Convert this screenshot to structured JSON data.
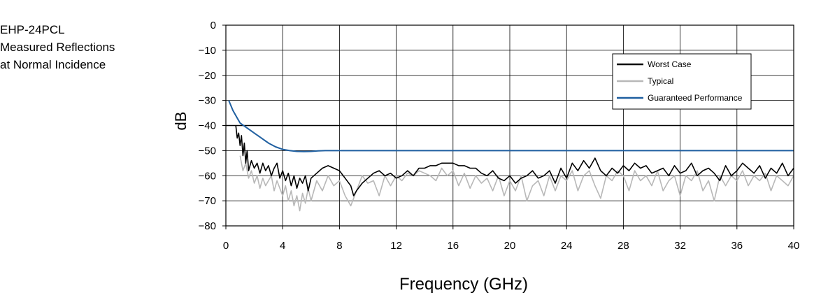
{
  "page_title_lines": [
    "EHP-24PCL",
    "Measured Reflections",
    "at Normal Incidence"
  ],
  "chart_data": {
    "type": "line",
    "title": "EHP-24PCL Measured Reflections at Normal Incidence",
    "xlabel": "Frequency (GHz)",
    "ylabel": "dB",
    "xlim": [
      0,
      40
    ],
    "ylim": [
      -80,
      0
    ],
    "x_ticks": [
      0,
      4,
      8,
      12,
      16,
      20,
      24,
      28,
      32,
      36,
      40
    ],
    "y_ticks": [
      0,
      -10,
      -20,
      -30,
      -40,
      -50,
      -60,
      -70,
      -80
    ],
    "y_tick_labels": [
      "0",
      "−10",
      "−20",
      "−30",
      "−40",
      "−50",
      "−60",
      "−70",
      "−80"
    ],
    "grid": true,
    "reference_line_y": -40,
    "legend_position": "top-right",
    "series": [
      {
        "name": "Worst Case",
        "color": "#000000",
        "x": [
          0.7,
          0.8,
          0.9,
          1.0,
          1.1,
          1.2,
          1.3,
          1.4,
          1.5,
          1.6,
          1.8,
          2.0,
          2.2,
          2.4,
          2.6,
          2.8,
          3.0,
          3.2,
          3.4,
          3.6,
          3.8,
          4.0,
          4.2,
          4.4,
          4.6,
          4.8,
          5.0,
          5.2,
          5.4,
          5.6,
          5.8,
          6.0,
          6.4,
          6.8,
          7.2,
          7.6,
          8.0,
          8.4,
          8.8,
          9.0,
          9.2,
          9.6,
          10.0,
          10.4,
          10.8,
          11.2,
          11.6,
          12.0,
          12.4,
          12.8,
          13.2,
          13.6,
          14.0,
          14.4,
          14.8,
          15.2,
          15.6,
          16.0,
          16.4,
          16.8,
          17.2,
          17.6,
          18.0,
          18.4,
          18.8,
          19.2,
          19.6,
          20.0,
          20.4,
          20.8,
          21.2,
          21.6,
          22.0,
          22.4,
          22.8,
          23.2,
          23.6,
          24.0,
          24.4,
          24.8,
          25.2,
          25.6,
          26.0,
          26.4,
          26.8,
          27.2,
          27.6,
          28.0,
          28.4,
          28.8,
          29.2,
          29.6,
          30.0,
          30.4,
          30.8,
          31.2,
          31.6,
          32.0,
          32.4,
          32.8,
          33.2,
          33.6,
          34.0,
          34.4,
          34.8,
          35.2,
          35.6,
          36.0,
          36.4,
          36.8,
          37.2,
          37.6,
          38.0,
          38.4,
          38.8,
          39.2,
          39.6,
          40.0
        ],
        "y": [
          -40,
          -45,
          -43,
          -48,
          -44,
          -52,
          -47,
          -55,
          -50,
          -58,
          -54,
          -57,
          -55,
          -59,
          -55,
          -58,
          -56,
          -60,
          -57,
          -55,
          -61,
          -58,
          -62,
          -59,
          -64,
          -60,
          -65,
          -61,
          -63,
          -60,
          -66,
          -61,
          -59,
          -57,
          -56,
          -57,
          -58,
          -61,
          -64,
          -68,
          -66,
          -63,
          -61,
          -59,
          -58,
          -60,
          -59,
          -61,
          -60,
          -58,
          -60,
          -57,
          -57,
          -56,
          -56,
          -55,
          -55,
          -55,
          -56,
          -56,
          -57,
          -57,
          -59,
          -60,
          -58,
          -61,
          -62,
          -60,
          -63,
          -61,
          -60,
          -58,
          -61,
          -60,
          -58,
          -63,
          -57,
          -61,
          -55,
          -58,
          -54,
          -57,
          -53,
          -58,
          -60,
          -57,
          -59,
          -56,
          -58,
          -55,
          -57,
          -56,
          -59,
          -58,
          -57,
          -60,
          -56,
          -59,
          -58,
          -55,
          -60,
          -58,
          -57,
          -59,
          -62,
          -56,
          -60,
          -58,
          -55,
          -57,
          -59,
          -56,
          -61,
          -57,
          -59,
          -55,
          -60,
          -57
        ]
      },
      {
        "name": "Typical",
        "color": "#b8b8b8",
        "x": [
          1.0,
          1.2,
          1.4,
          1.6,
          1.8,
          2.0,
          2.2,
          2.4,
          2.6,
          2.8,
          3.0,
          3.2,
          3.4,
          3.6,
          3.8,
          4.0,
          4.2,
          4.4,
          4.6,
          4.8,
          5.0,
          5.2,
          5.4,
          5.6,
          5.8,
          6.0,
          6.4,
          6.8,
          7.2,
          7.6,
          8.0,
          8.4,
          8.8,
          9.2,
          9.6,
          10.0,
          10.4,
          10.8,
          11.2,
          11.6,
          12.0,
          12.4,
          12.8,
          13.2,
          13.6,
          14.0,
          14.4,
          14.8,
          15.2,
          15.6,
          16.0,
          16.4,
          16.8,
          17.2,
          17.6,
          18.0,
          18.4,
          18.8,
          19.2,
          19.6,
          20.0,
          20.4,
          20.8,
          21.2,
          21.6,
          22.0,
          22.4,
          22.8,
          23.2,
          23.6,
          24.0,
          24.4,
          24.8,
          25.2,
          25.6,
          26.0,
          26.4,
          26.8,
          27.2,
          27.6,
          28.0,
          28.4,
          28.8,
          29.2,
          29.6,
          30.0,
          30.4,
          30.8,
          31.2,
          31.6,
          32.0,
          32.4,
          32.8,
          33.2,
          33.6,
          34.0,
          34.4,
          34.8,
          35.2,
          35.6,
          36.0,
          36.4,
          36.8,
          37.2,
          37.6,
          38.0,
          38.4,
          38.8,
          39.2,
          39.6,
          40.0
        ],
        "y": [
          -52,
          -58,
          -55,
          -61,
          -58,
          -63,
          -60,
          -65,
          -61,
          -64,
          -62,
          -60,
          -66,
          -62,
          -65,
          -68,
          -64,
          -70,
          -66,
          -72,
          -68,
          -74,
          -67,
          -71,
          -65,
          -70,
          -62,
          -66,
          -60,
          -64,
          -62,
          -68,
          -72,
          -66,
          -60,
          -63,
          -62,
          -68,
          -60,
          -64,
          -60,
          -62,
          -59,
          -60,
          -58,
          -59,
          -60,
          -62,
          -57,
          -60,
          -58,
          -64,
          -59,
          -65,
          -60,
          -63,
          -61,
          -66,
          -60,
          -68,
          -62,
          -66,
          -60,
          -70,
          -64,
          -62,
          -68,
          -60,
          -66,
          -60,
          -62,
          -58,
          -66,
          -60,
          -58,
          -64,
          -69,
          -60,
          -62,
          -58,
          -60,
          -66,
          -58,
          -62,
          -60,
          -64,
          -58,
          -66,
          -62,
          -60,
          -68,
          -60,
          -62,
          -58,
          -66,
          -62,
          -70,
          -60,
          -64,
          -60,
          -62,
          -58,
          -64,
          -60,
          -62,
          -59,
          -66,
          -60,
          -62,
          -64,
          -60
        ]
      },
      {
        "name": "Guaranteed Performance",
        "color": "#1f5fa0",
        "x": [
          0.2,
          0.5,
          0.8,
          1.0,
          1.5,
          2.0,
          2.5,
          3.0,
          3.5,
          4.0,
          4.5,
          5.0,
          5.5,
          6.0,
          6.5,
          7.0,
          8.0,
          10.0,
          14.0,
          20.0,
          26.0,
          32.0,
          36.0,
          40.0
        ],
        "y": [
          -30,
          -34,
          -37,
          -39,
          -41,
          -43,
          -45,
          -47,
          -48.5,
          -49.5,
          -50,
          -50.3,
          -50.4,
          -50.3,
          -50.1,
          -50,
          -50,
          -50,
          -50,
          -50,
          -50,
          -50,
          -50,
          -50
        ]
      }
    ]
  }
}
